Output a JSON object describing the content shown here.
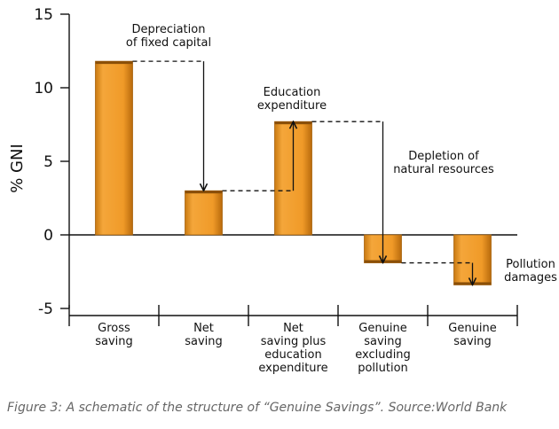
{
  "caption": "Figure 3: A schematic of the structure of “Genuine Savings”. Source:World Bank",
  "chart_data": {
    "type": "bar",
    "ylabel": "% GNI",
    "ylim": [
      -5,
      15
    ],
    "yticks": [
      15,
      10,
      5,
      0,
      -5
    ],
    "bar_color": "#f0a030",
    "categories": [
      [
        "Gross",
        "saving"
      ],
      [
        "Net",
        "saving"
      ],
      [
        "Net",
        "saving plus",
        "education",
        "expenditure"
      ],
      [
        "Genuine",
        "saving",
        "excluding",
        "pollution"
      ],
      [
        "Genuine",
        "saving"
      ]
    ],
    "values": [
      11.8,
      3.0,
      7.7,
      -1.9,
      -3.4
    ],
    "annotations": [
      {
        "lines": [
          "Depreciation",
          "of fixed capital"
        ],
        "from": 0,
        "to": 1
      },
      {
        "lines": [
          "Education",
          "expenditure"
        ],
        "from": 1,
        "to": 2
      },
      {
        "lines": [
          "Depletion of",
          "natural resources"
        ],
        "from": 2,
        "to": 3
      },
      {
        "lines": [
          "Pollution",
          "damages"
        ],
        "from": 3,
        "to": 4
      }
    ]
  }
}
